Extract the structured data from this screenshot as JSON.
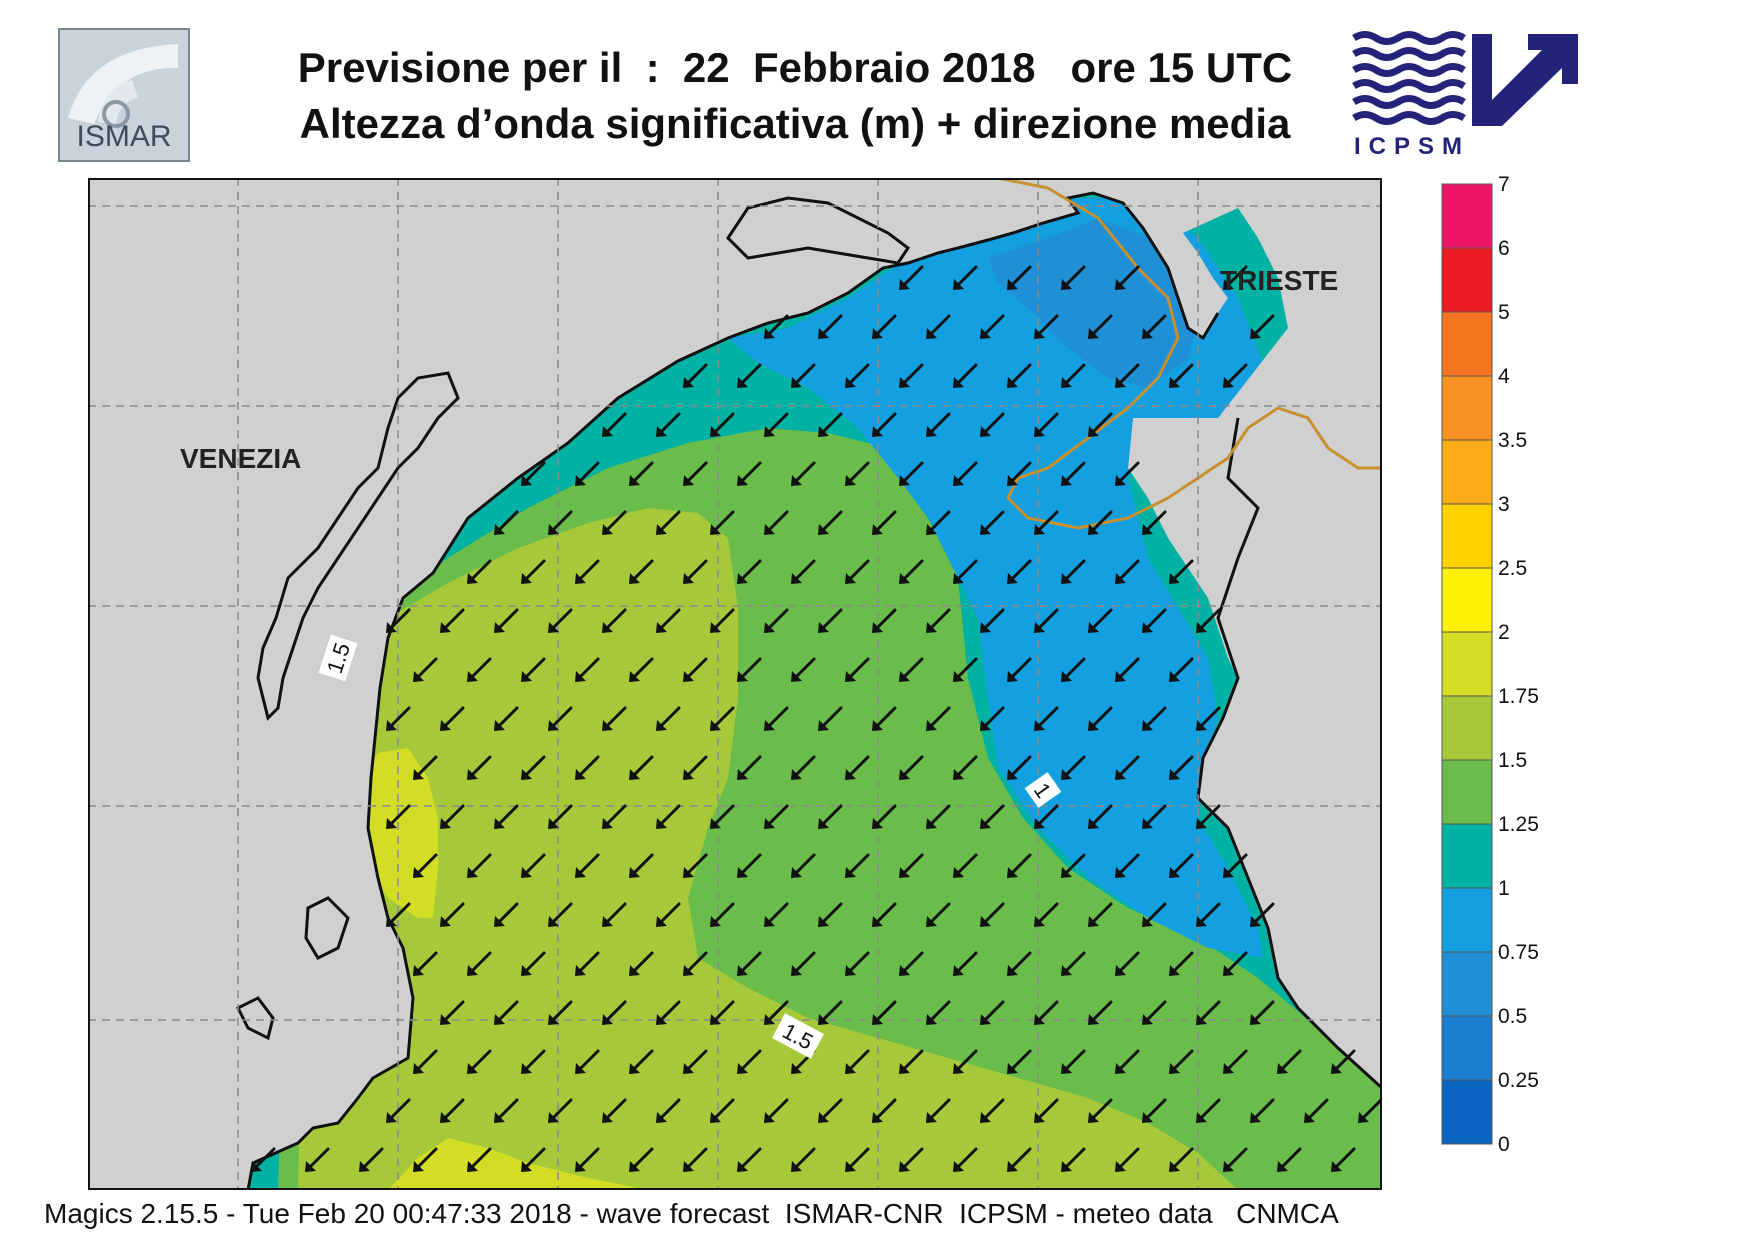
{
  "header": {
    "title_line1": "Previsione per il  :  22  Febbraio 2018   ore 15 UTC",
    "title_line2": "Altezza d’onda significativa (m) + direzione media",
    "logo_left_text": "ISMAR",
    "logo_right_text": "ICPSM"
  },
  "map": {
    "place_labels": [
      "VENEZIA",
      "TRIESTE"
    ],
    "contour_labels": [
      "1.5",
      "1",
      "1.5"
    ],
    "arrow_direction": "south-west",
    "colors": {
      "land": "#d0d0d0",
      "coast": "#111111",
      "border": "#c8902e",
      "level_0_75_1": "#14a0e0",
      "level_0_5_0_75": "#1f8fd6",
      "level_1_1_25": "#00b2a4",
      "level_1_25_1_5": "#6abd4b",
      "level_1_5_1_75": "#a6c93a",
      "level_1_75_2": "#d4dd26"
    }
  },
  "colorbar": {
    "labels": [
      "0",
      "0.25",
      "0.5",
      "0.75",
      "1",
      "1.25",
      "1.5",
      "1.75",
      "2",
      "2.5",
      "3",
      "3.5",
      "4",
      "5",
      "6",
      "7"
    ],
    "colors": [
      "#0a66c2",
      "#1a7fd0",
      "#1f8fd6",
      "#14a0e0",
      "#00b2a4",
      "#6abd4b",
      "#a6c93a",
      "#d4dd26",
      "#fff200",
      "#ffd200",
      "#fcad18",
      "#f99224",
      "#f57420",
      "#ed1c24",
      "#ee1566"
    ]
  },
  "footer": {
    "text": "Magics 2.15.5 - Tue Feb 20 00:47:33 2018 - wave forecast  ISMAR-CNR  ICPSM - meteo data   CNMCA"
  }
}
